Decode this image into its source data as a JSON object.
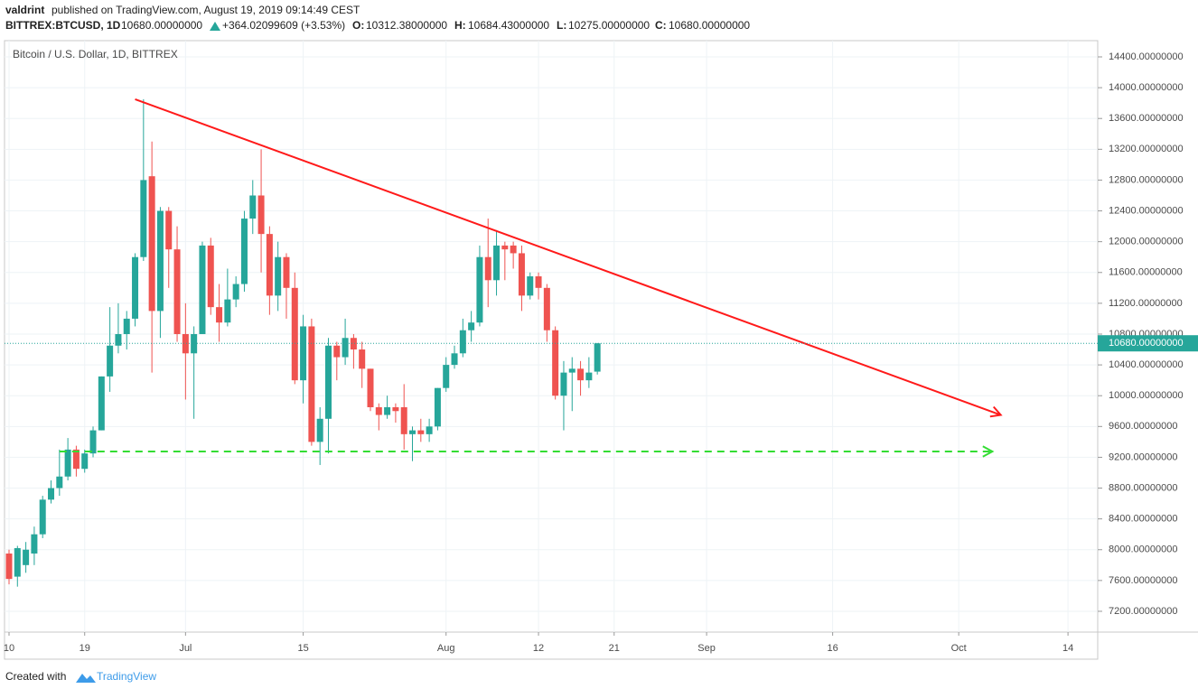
{
  "header": {
    "user": "valdrint",
    "published": "published on TradingView.com, August 19, 2019 09:14:49 CEST",
    "symbol": "BITTREX:BTCUSD, 1D",
    "price": "10680.00000000",
    "change": "+364.02099609 (+3.53%)",
    "o_label": "O:",
    "o": "10312.38000000",
    "h_label": "H:",
    "h": "10684.43000000",
    "l_label": "L:",
    "l": "10275.00000000",
    "c_label": "C:",
    "c": "10680.00000000"
  },
  "footer": {
    "created": "Created with",
    "brand": "TradingView"
  },
  "chart_data": {
    "type": "candlestick",
    "title": "Bitcoin / U.S. Dollar, 1D, BITTREX",
    "up_color": "#26a69a",
    "down_color": "#ef5350",
    "grid": true,
    "x": [
      "2019-06-10",
      "2019-06-11",
      "2019-06-12",
      "2019-06-13",
      "2019-06-14",
      "2019-06-15",
      "2019-06-16",
      "2019-06-17",
      "2019-06-18",
      "2019-06-19",
      "2019-06-20",
      "2019-06-21",
      "2019-06-22",
      "2019-06-23",
      "2019-06-24",
      "2019-06-25",
      "2019-06-26",
      "2019-06-27",
      "2019-06-28",
      "2019-06-29",
      "2019-06-30",
      "2019-07-01",
      "2019-07-02",
      "2019-07-03",
      "2019-07-04",
      "2019-07-05",
      "2019-07-06",
      "2019-07-07",
      "2019-07-08",
      "2019-07-09",
      "2019-07-10",
      "2019-07-11",
      "2019-07-12",
      "2019-07-13",
      "2019-07-14",
      "2019-07-15",
      "2019-07-16",
      "2019-07-17",
      "2019-07-18",
      "2019-07-19",
      "2019-07-20",
      "2019-07-21",
      "2019-07-22",
      "2019-07-23",
      "2019-07-24",
      "2019-07-25",
      "2019-07-26",
      "2019-07-27",
      "2019-07-28",
      "2019-07-29",
      "2019-07-30",
      "2019-07-31",
      "2019-08-01",
      "2019-08-02",
      "2019-08-03",
      "2019-08-04",
      "2019-08-05",
      "2019-08-06",
      "2019-08-07",
      "2019-08-08",
      "2019-08-09",
      "2019-08-10",
      "2019-08-11",
      "2019-08-12",
      "2019-08-13",
      "2019-08-14",
      "2019-08-15",
      "2019-08-16",
      "2019-08-17",
      "2019-08-18",
      "2019-08-19"
    ],
    "open": [
      7950,
      7650,
      7800,
      7950,
      8200,
      8650,
      8800,
      8950,
      9300,
      9050,
      9250,
      9550,
      10250,
      10650,
      10800,
      11000,
      11800,
      12850,
      11100,
      12400,
      11900,
      10800,
      10550,
      10800,
      11950,
      11150,
      10950,
      11250,
      11450,
      12300,
      12600,
      12100,
      11300,
      11800,
      11400,
      10200,
      10900,
      9400,
      9700,
      10650,
      10500,
      10750,
      10600,
      10350,
      9850,
      9750,
      9850,
      9850,
      9500,
      9550,
      9500,
      9600,
      10100,
      10400,
      10550,
      10850,
      10950,
      11800,
      11500,
      11950,
      11950,
      11850,
      11300,
      11550,
      11400,
      10850,
      10000,
      10300,
      10350,
      10200,
      10312.38
    ],
    "high": [
      8000,
      8050,
      8100,
      8300,
      8700,
      8900,
      9300,
      9450,
      9350,
      9300,
      9600,
      10250,
      11150,
      11200,
      11100,
      11850,
      13850,
      13300,
      12450,
      12450,
      12200,
      11200,
      10900,
      12000,
      12050,
      11450,
      11650,
      11550,
      12400,
      12800,
      13200,
      12200,
      12000,
      11850,
      11600,
      11050,
      11000,
      9850,
      10750,
      10700,
      11000,
      10800,
      10700,
      10350,
      9900,
      10000,
      9900,
      10150,
      9600,
      9700,
      9700,
      10100,
      10500,
      10650,
      11000,
      11100,
      11950,
      12300,
      12150,
      12000,
      12000,
      11950,
      11600,
      11600,
      11450,
      10900,
      10450,
      10500,
      10450,
      10500,
      10684.43
    ],
    "low": [
      7550,
      7520,
      7700,
      7800,
      8150,
      8600,
      8700,
      8900,
      8950,
      9000,
      9200,
      9550,
      10050,
      10550,
      10600,
      10900,
      11750,
      10300,
      10750,
      11400,
      10700,
      9950,
      9700,
      10800,
      11050,
      10700,
      10900,
      11150,
      11350,
      12100,
      11600,
      11050,
      11100,
      11000,
      10150,
      9900,
      9350,
      9100,
      9250,
      10200,
      10400,
      10350,
      10100,
      9800,
      9550,
      9700,
      9650,
      9300,
      9150,
      9400,
      9400,
      9550,
      10050,
      10350,
      10500,
      10700,
      10900,
      11150,
      11300,
      11500,
      11650,
      11100,
      11250,
      11250,
      10700,
      9950,
      9550,
      9800,
      10000,
      10100,
      10275
    ],
    "close": [
      7620,
      8020,
      8000,
      8200,
      8650,
      8800,
      8950,
      9300,
      9050,
      9250,
      9550,
      10250,
      10650,
      10800,
      11000,
      11800,
      12800,
      11100,
      12400,
      11900,
      10800,
      10550,
      10800,
      11950,
      11150,
      10950,
      11250,
      11450,
      12300,
      12600,
      12100,
      11300,
      11800,
      11400,
      10200,
      10900,
      9400,
      9700,
      10650,
      10500,
      10750,
      10600,
      10350,
      9850,
      9750,
      9850,
      9800,
      9500,
      9550,
      9500,
      9600,
      10100,
      10400,
      10550,
      10850,
      10950,
      11800,
      11500,
      11950,
      11900,
      11850,
      11300,
      11550,
      11400,
      10850,
      10000,
      10300,
      10350,
      10200,
      10300,
      10680
    ],
    "xlim": [
      "2019-06-10",
      "2019-10-17"
    ],
    "xticks": [
      {
        "value": "2019-06-10",
        "label": "10"
      },
      {
        "value": "2019-06-19",
        "label": "19"
      },
      {
        "value": "2019-07-01",
        "label": "Jul"
      },
      {
        "value": "2019-07-15",
        "label": "15"
      },
      {
        "value": "2019-08-01",
        "label": "Aug"
      },
      {
        "value": "2019-08-12",
        "label": "12"
      },
      {
        "value": "2019-08-21",
        "label": "21"
      },
      {
        "value": "2019-09-01",
        "label": "Sep"
      },
      {
        "value": "2019-09-16",
        "label": "16"
      },
      {
        "value": "2019-10-01",
        "label": "Oct"
      },
      {
        "value": "2019-10-14",
        "label": "14"
      }
    ],
    "ylim": [
      6930,
      14611
    ],
    "yticks": [
      {
        "value": 7200,
        "label": "7200.00000000"
      },
      {
        "value": 7600,
        "label": "7600.00000000"
      },
      {
        "value": 8000,
        "label": "8000.00000000"
      },
      {
        "value": 8400,
        "label": "8400.00000000"
      },
      {
        "value": 8800,
        "label": "8800.00000000"
      },
      {
        "value": 9200,
        "label": "9200.00000000"
      },
      {
        "value": 9600,
        "label": "9600.00000000"
      },
      {
        "value": 10000,
        "label": "10000.00000000"
      },
      {
        "value": 10400,
        "label": "10400.00000000"
      },
      {
        "value": 10800,
        "label": "10800.00000000"
      },
      {
        "value": 11200,
        "label": "11200.00000000"
      },
      {
        "value": 11600,
        "label": "11600.00000000"
      },
      {
        "value": 12000,
        "label": "12000.00000000"
      },
      {
        "value": 12400,
        "label": "12400.00000000"
      },
      {
        "value": 12800,
        "label": "12800.00000000"
      },
      {
        "value": 13200,
        "label": "13200.00000000"
      },
      {
        "value": 13600,
        "label": "13600.00000000"
      },
      {
        "value": 14000,
        "label": "14000.00000000"
      },
      {
        "value": 14400,
        "label": "14400.00000000"
      }
    ],
    "last_price": {
      "value": 10680,
      "label": "10680.00000000"
    },
    "drawings": [
      {
        "color": "#ff1a1a",
        "style": "solid",
        "points": [
          [
            "2019-06-25",
            13850
          ],
          [
            "2019-10-06",
            9750
          ]
        ]
      },
      {
        "color": "#33dd33",
        "style": "dashed",
        "points": [
          [
            "2019-06-16",
            9275
          ],
          [
            "2019-10-05",
            9275
          ]
        ]
      }
    ]
  }
}
